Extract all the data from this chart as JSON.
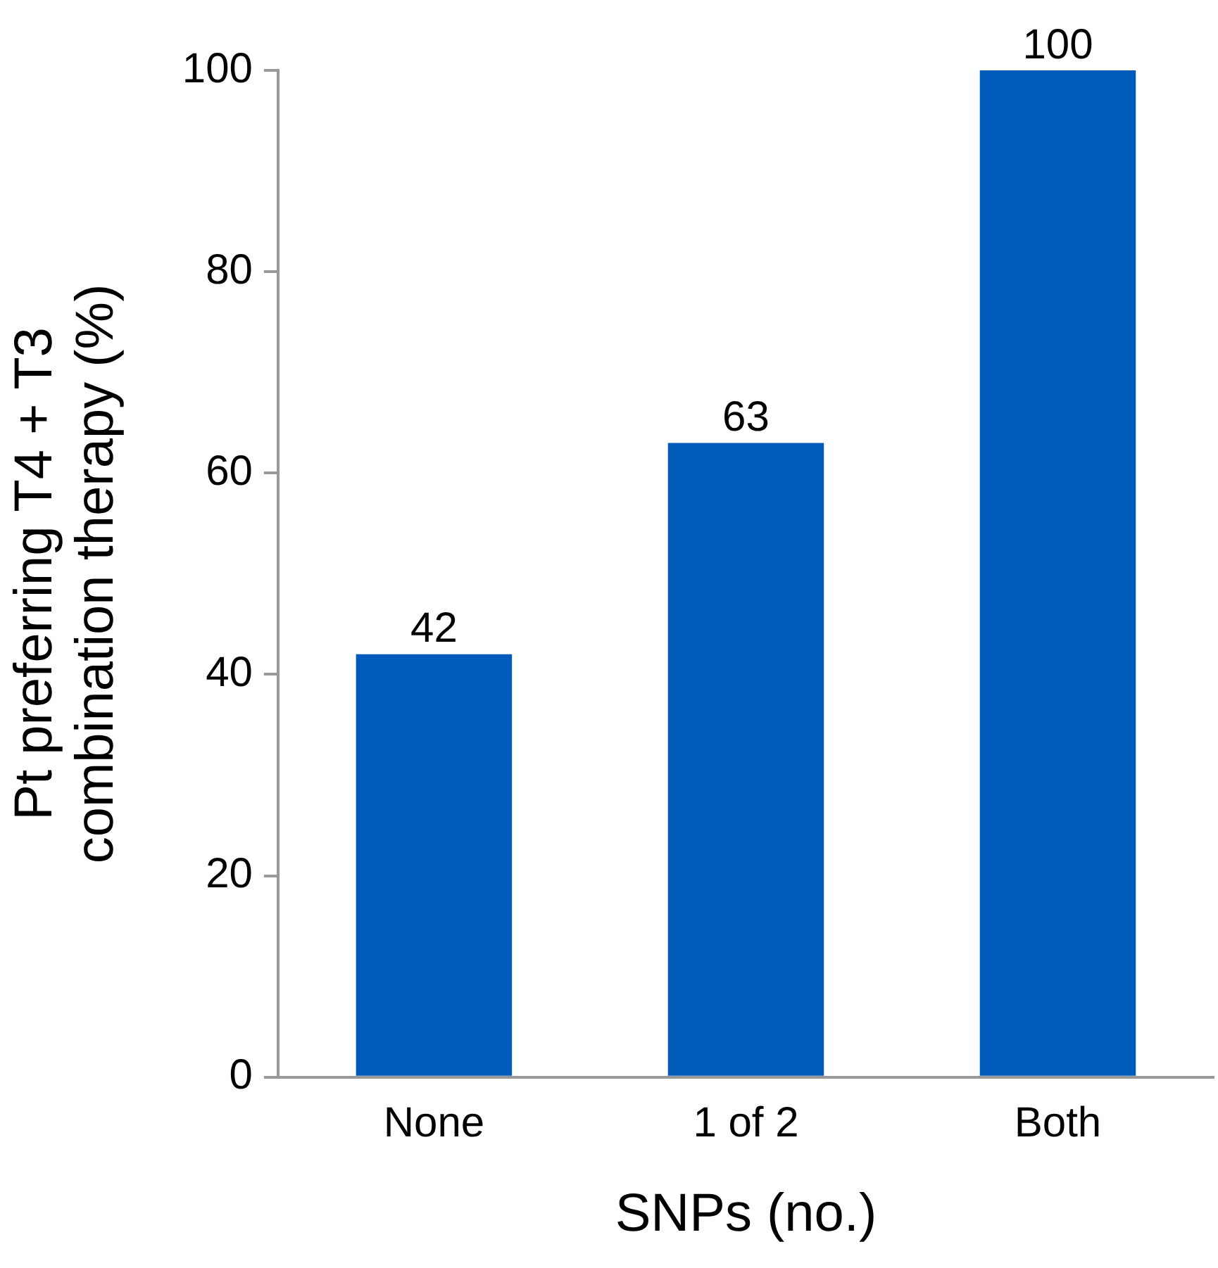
{
  "chart_data": {
    "type": "bar",
    "xlabel": "SNPs (no.)",
    "ylabel": "Pt preferring T4 + T3\ncombination therapy (%)",
    "categories": [
      "None",
      "1 of 2",
      "Both"
    ],
    "values": [
      42,
      63,
      100
    ],
    "color": "#005bbb",
    "ylim": [
      0,
      100
    ],
    "yticks": [
      0,
      20,
      40,
      60,
      80,
      100
    ],
    "grid": false,
    "data_labels": true,
    "legend": false
  }
}
